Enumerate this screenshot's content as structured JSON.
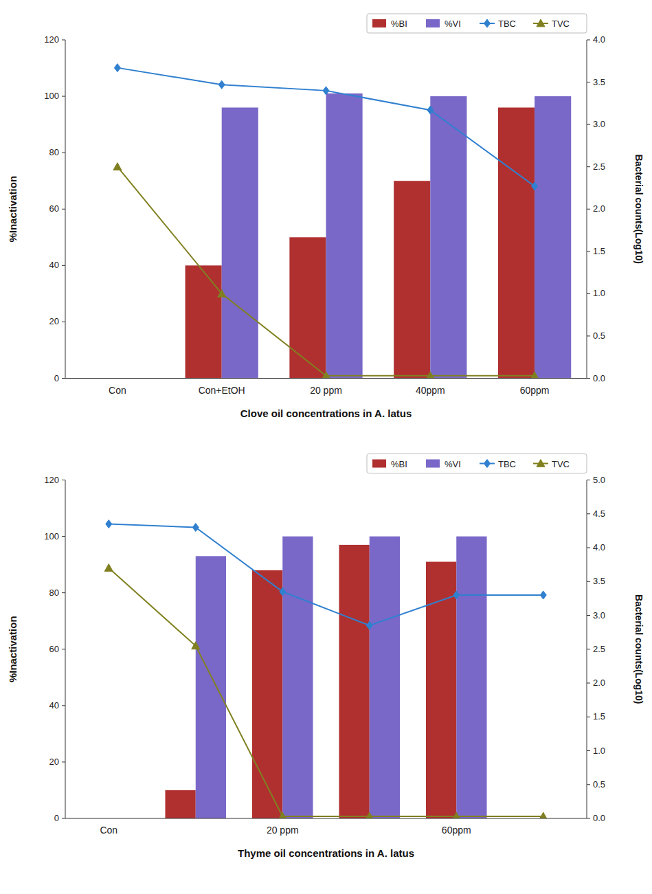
{
  "chart_data": [
    {
      "type": "bar",
      "categories": [
        "Con",
        "Con+EtOH",
        "20 ppm",
        "40ppm",
        "60ppm"
      ],
      "series": [
        {
          "name": "%BI",
          "type": "bar",
          "color": "#B03030",
          "values": [
            0,
            40,
            50,
            70,
            96
          ]
        },
        {
          "name": "%VI",
          "type": "bar",
          "color": "#7968C8",
          "values": [
            0,
            96,
            101,
            100,
            100
          ]
        },
        {
          "name": "TBC",
          "type": "line",
          "axis": "y2",
          "color": "#3080D0",
          "marker": "diamond",
          "values": [
            3.67,
            3.47,
            3.4,
            3.17,
            2.27
          ]
        },
        {
          "name": "TVC",
          "type": "line",
          "axis": "y2",
          "color": "#808020",
          "marker": "triangle",
          "values": [
            2.5,
            1.0,
            0.03,
            0.03,
            0.03
          ]
        }
      ],
      "xlabel": "Clove oil concentrations in A. latus",
      "ylabel": "%Inactivation",
      "y2label": "Bacterial counts(Log10)",
      "ylim": [
        0,
        120
      ],
      "yticks": [
        0,
        20,
        40,
        60,
        80,
        100,
        120
      ],
      "y2lim": [
        0,
        4
      ],
      "y2ticks": [
        {
          "value": 0,
          "label": "0.0"
        },
        0.5,
        {
          "value": 1,
          "label": "1.0"
        },
        1.5,
        {
          "value": 2,
          "label": "2.0"
        },
        2.5,
        {
          "value": 3,
          "label": "3.0"
        },
        3.5,
        {
          "value": 4,
          "label": "4.0"
        }
      ],
      "grid": false,
      "legend": "upper right"
    },
    {
      "type": "bar",
      "categories": [
        "Con",
        null,
        "20 ppm",
        null,
        "60ppm",
        null
      ],
      "series": [
        {
          "name": "%BI",
          "type": "bar",
          "color": "#B03030",
          "values": [
            0,
            10,
            88,
            97,
            91,
            0
          ]
        },
        {
          "name": "%VI",
          "type": "bar",
          "color": "#7968C8",
          "values": [
            0,
            93,
            100,
            100,
            100,
            0
          ]
        },
        {
          "name": "TBC",
          "type": "line",
          "axis": "y2",
          "color": "#3080D0",
          "marker": "diamond",
          "values": [
            4.35,
            4.3,
            3.35,
            2.85,
            3.3,
            3.3
          ]
        },
        {
          "name": "TVC",
          "type": "line",
          "axis": "y2",
          "color": "#808020",
          "marker": "triangle",
          "values": [
            3.7,
            2.55,
            0.03,
            0.03,
            0.03,
            0.03
          ]
        }
      ],
      "xlabel": "Thyme oil concentrations in A. latus",
      "ylabel": "%Inactivation",
      "y2label": "Bacterial counts(Log10)",
      "ylim": [
        0,
        120
      ],
      "yticks": [
        0,
        20,
        40,
        60,
        80,
        100,
        120
      ],
      "y2lim": [
        0,
        5
      ],
      "y2ticks": [
        {
          "value": 0,
          "label": "0.0"
        },
        0.5,
        {
          "value": 1,
          "label": "1.0"
        },
        1.5,
        {
          "value": 2,
          "label": "2.0"
        },
        2.5,
        {
          "value": 3,
          "label": "3.0"
        },
        3.5,
        {
          "value": 4,
          "label": "4.0"
        },
        4.5,
        {
          "value": 5,
          "label": "5.0"
        }
      ],
      "grid": false,
      "legend": "upper right"
    }
  ]
}
